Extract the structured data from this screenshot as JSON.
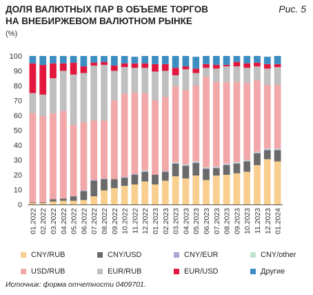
{
  "title_line1": "ДОЛЯ ВАЛЮТНЫХ ПАР В ОБЪЕМЕ ТОРГОВ",
  "title_line2": "НА ВНЕБИРЖЕВОМ ВАЛЮТНОМ РЫНКЕ",
  "figure_number": "Рис. 5",
  "unit": "(%)",
  "source": "Источник: форма отчетности 0409701.",
  "colors": {
    "CNY/RUB": "#f8cf8e",
    "CNY/USD": "#6a6a6a",
    "CNY/EUR": "#a9a8d6",
    "CNY/other": "#bfe3cf",
    "USD/RUB": "#f2a7a8",
    "EUR/RUB": "#c0c0c0",
    "EUR/USD": "#e3173e",
    "Другие": "#3c8ec2"
  },
  "chart_data": {
    "type": "bar",
    "stacked": true,
    "title": "",
    "xlabel": "",
    "ylabel": "(%)",
    "ylim": [
      0,
      100
    ],
    "yticks": [
      0,
      10,
      20,
      30,
      40,
      50,
      60,
      70,
      80,
      90,
      100
    ],
    "grid": false,
    "legend_position": "bottom",
    "categories": [
      "01.2022",
      "02.2022",
      "03.2022",
      "04.2022",
      "05.2022",
      "06.2022",
      "07.2022",
      "08.2022",
      "09.2022",
      "10.2022",
      "11.2022",
      "12.2022",
      "01.2023",
      "02.2023",
      "03.2023",
      "04.2023",
      "05.2023",
      "06.2023",
      "07.2023",
      "08.2023",
      "09.2023",
      "10.2023",
      "11.2023",
      "12.2023",
      "01.2024"
    ],
    "series": [
      {
        "name": "CNY/RUB",
        "values": [
          1,
          1,
          2,
          2.5,
          2.5,
          3,
          5.5,
          9.5,
          11,
          12.5,
          13.5,
          15.5,
          13.5,
          16,
          19,
          17.5,
          19.5,
          16.5,
          19.5,
          20,
          21,
          22,
          26.5,
          30.5,
          29
        ]
      },
      {
        "name": "CNY/USD",
        "values": [
          0.5,
          0.5,
          1.5,
          1.5,
          3,
          6,
          10.5,
          7.5,
          6,
          5.5,
          6.5,
          6.5,
          6.5,
          6,
          8.5,
          8.5,
          8.5,
          7.5,
          5,
          6.5,
          6.5,
          7,
          8,
          6,
          7.5
        ]
      },
      {
        "name": "CNY/EUR",
        "values": [
          0,
          0,
          0,
          0,
          0,
          0.5,
          0.5,
          0.5,
          0,
          0.5,
          0.5,
          0.5,
          0,
          0.5,
          0.5,
          0.5,
          0.5,
          0.5,
          0.5,
          0.5,
          0.5,
          0.5,
          0.5,
          0.5,
          0.5
        ]
      },
      {
        "name": "CNY/other",
        "values": [
          0,
          0,
          0,
          0,
          0,
          0,
          0,
          0,
          0,
          0,
          0,
          0.5,
          0,
          0,
          0.5,
          0.5,
          0.5,
          0.5,
          0.5,
          0.5,
          0.5,
          0.5,
          0.5,
          0.5,
          0.5
        ]
      },
      {
        "name": "USD/RUB",
        "values": [
          60,
          58,
          58,
          59,
          48,
          46,
          40,
          39,
          53,
          56,
          55,
          52,
          50,
          50,
          51,
          50,
          51,
          61,
          57,
          55,
          54,
          52,
          48,
          43,
          43
        ]
      },
      {
        "name": "EUR/RUB",
        "values": [
          13.5,
          14.5,
          23.5,
          27,
          34,
          33,
          37,
          37.5,
          20,
          18,
          16.5,
          17,
          19.5,
          17.5,
          7.5,
          14,
          8.5,
          6,
          9,
          10.5,
          10.5,
          10,
          9.5,
          11,
          12
        ]
      },
      {
        "name": "EUR/USD",
        "values": [
          20,
          20,
          10,
          5,
          8,
          4.5,
          2,
          2,
          3.5,
          2.5,
          3,
          3,
          5,
          4.5,
          5,
          2,
          3,
          2.5,
          2.5,
          1,
          3,
          3,
          2.5,
          3,
          2
        ]
      },
      {
        "name": "Другие",
        "values": [
          5,
          6,
          5,
          5,
          4.5,
          7,
          4.5,
          4,
          6.5,
          5,
          4.5,
          5,
          5.5,
          5.5,
          8,
          7,
          8,
          5.5,
          6,
          6,
          4,
          5,
          4.5,
          5,
          5.5
        ]
      }
    ]
  }
}
